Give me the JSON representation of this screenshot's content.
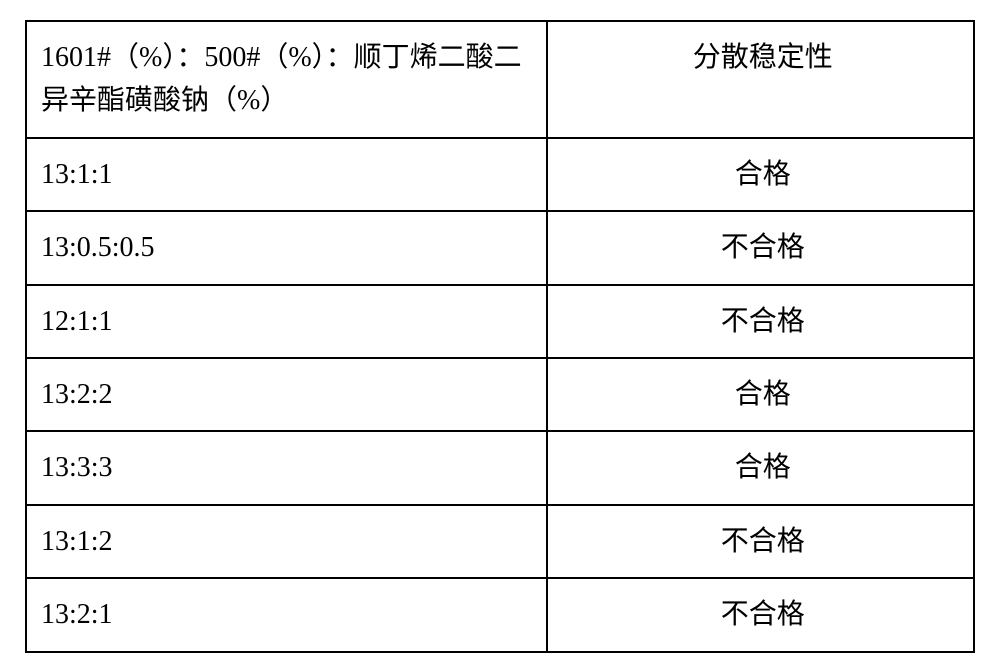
{
  "table": {
    "border_color": "#000000",
    "border_width": 2,
    "background_color": "#ffffff",
    "text_color": "#000000",
    "font_size_pt": 21,
    "font_family": "SimSun",
    "columns": [
      {
        "key": "ratio",
        "width_pct": 55,
        "align": "left"
      },
      {
        "key": "result",
        "width_pct": 45,
        "align": "center"
      }
    ],
    "header": {
      "ratio": "1601#（%）：500#（%）：顺丁烯二酸二异辛酯磺酸钠（%）",
      "result": "分散稳定性"
    },
    "rows": [
      {
        "ratio": "13:1:1",
        "result": "合格"
      },
      {
        "ratio": "13:0.5:0.5",
        "result": "不合格"
      },
      {
        "ratio": "12:1:1",
        "result": "不合格"
      },
      {
        "ratio": "13:2:2",
        "result": "合格"
      },
      {
        "ratio": "13:3:3",
        "result": "合格"
      },
      {
        "ratio": "13:1:2",
        "result": "不合格"
      },
      {
        "ratio": "13:2:1",
        "result": "不合格"
      }
    ]
  }
}
